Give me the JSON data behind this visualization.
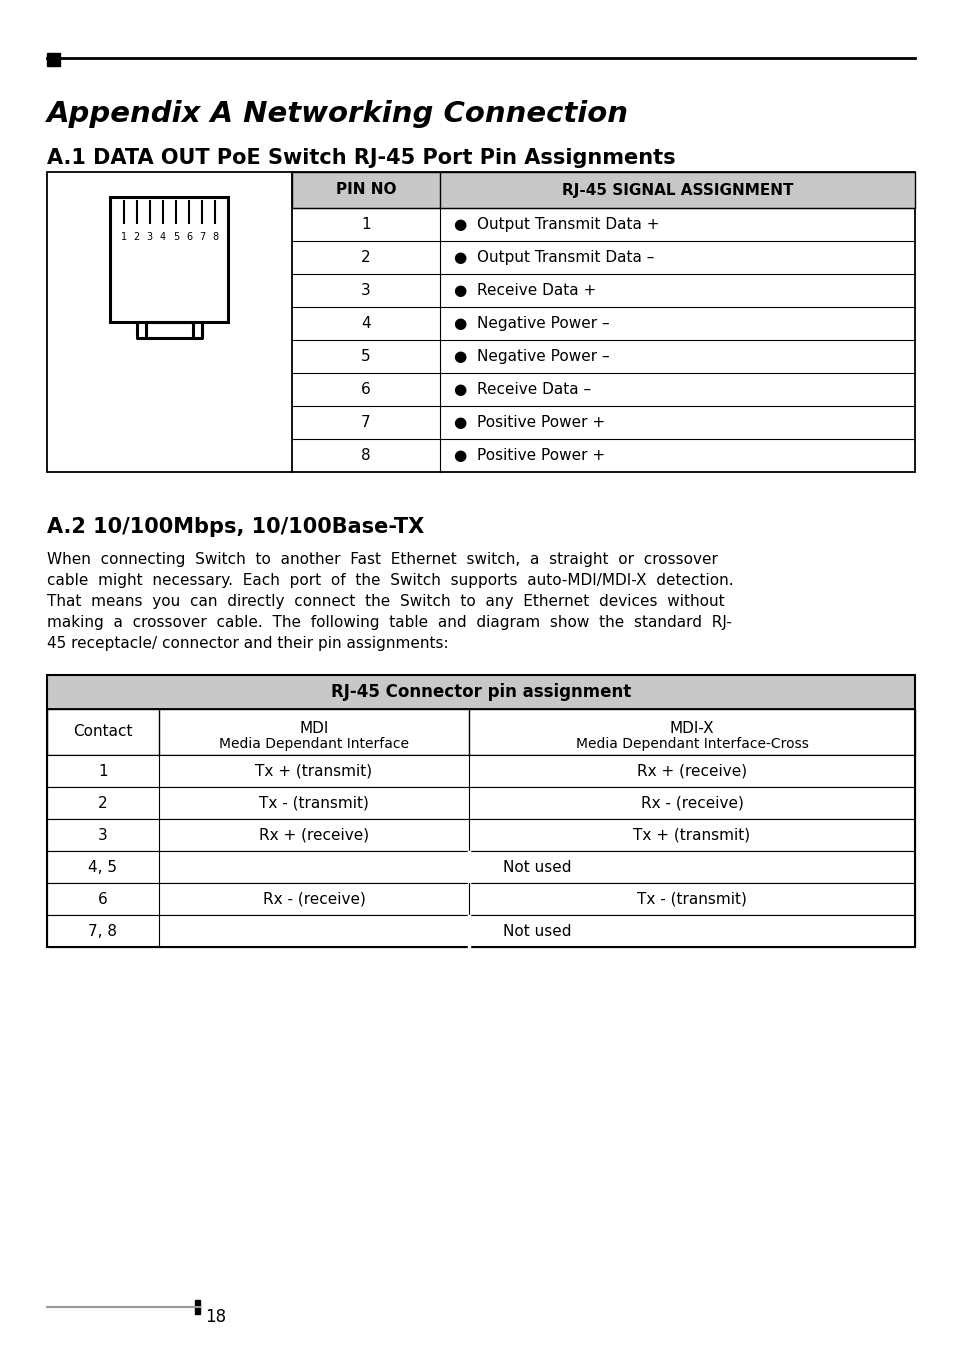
{
  "title_main": "Appendix A Networking Connection",
  "subtitle1": "A.1 DATA OUT PoE Switch RJ-45 Port Pin Assignments",
  "subtitle2": "A.2 10/100Mbps, 10/100Base-TX",
  "paragraph_lines": [
    "When  connecting  Switch  to  another  Fast  Ethernet  switch,  a  straight  or  crossover",
    "cable  might  necessary.  Each  port  of  the  Switch  supports  auto-MDI/MDI-X  detection.",
    "That  means  you  can  directly  connect  the  Switch  to  any  Ethernet  devices  without",
    "making  a  crossover  cable.  The  following  table  and  diagram  show  the  standard  RJ-",
    "45 receptacle/ connector and their pin assignments:"
  ],
  "table1_header": [
    "PIN NO",
    "RJ-45 SIGNAL ASSIGNMENT"
  ],
  "table1_rows": [
    [
      "1",
      "●  Output Transmit Data +"
    ],
    [
      "2",
      "●  Output Transmit Data –"
    ],
    [
      "3",
      "●  Receive Data +"
    ],
    [
      "4",
      "●  Negative Power –"
    ],
    [
      "5",
      "●  Negative Power –"
    ],
    [
      "6",
      "●  Receive Data –"
    ],
    [
      "7",
      "●  Positive Power +"
    ],
    [
      "8",
      "●  Positive Power +"
    ]
  ],
  "table2_header": "RJ-45 Connector pin assignment",
  "table2_rows": [
    [
      "1",
      "Tx + (transmit)",
      "Rx + (receive)"
    ],
    [
      "2",
      "Tx - (transmit)",
      "Rx - (receive)"
    ],
    [
      "3",
      "Rx + (receive)",
      "Tx + (transmit)"
    ],
    [
      "4, 5",
      "Not used",
      null
    ],
    [
      "6",
      "Rx - (receive)",
      "Tx - (transmit)"
    ],
    [
      "7, 8",
      "Not used",
      null
    ]
  ],
  "page_number": "18",
  "bg_color": "#ffffff",
  "header_bg": "#c8c8c8"
}
